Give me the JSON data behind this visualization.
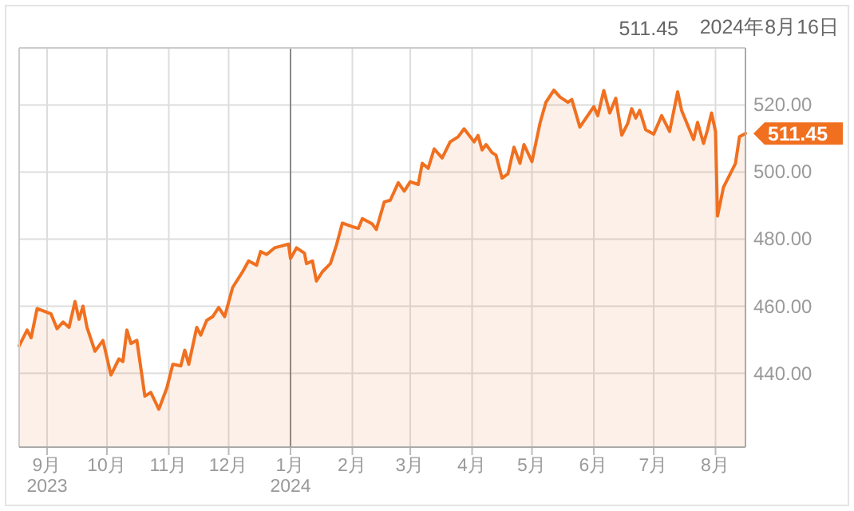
{
  "chart_data": {
    "type": "area",
    "x": [
      "2023-08-18",
      "2023-08-22",
      "2023-08-24",
      "2023-08-27",
      "2023-09-03",
      "2023-09-06",
      "2023-09-09",
      "2023-09-12",
      "2023-09-15",
      "2023-09-17",
      "2023-09-19",
      "2023-09-21",
      "2023-09-25",
      "2023-09-29",
      "2023-10-03",
      "2023-10-07",
      "2023-10-09",
      "2023-10-11",
      "2023-10-13",
      "2023-10-16",
      "2023-10-20",
      "2023-10-23",
      "2023-10-27",
      "2023-10-31",
      "2023-11-03",
      "2023-11-07",
      "2023-11-09",
      "2023-11-11",
      "2023-11-15",
      "2023-11-17",
      "2023-11-20",
      "2023-11-23",
      "2023-11-26",
      "2023-11-29",
      "2023-12-03",
      "2023-12-08",
      "2023-12-11",
      "2023-12-15",
      "2023-12-17",
      "2023-12-20",
      "2023-12-24",
      "2023-12-27",
      "2023-12-31",
      "2024-01-01",
      "2024-01-04",
      "2024-01-08",
      "2024-01-09",
      "2024-01-12",
      "2024-01-14",
      "2024-01-17",
      "2024-01-21",
      "2024-01-24",
      "2024-01-27",
      "2024-02-01",
      "2024-02-04",
      "2024-02-06",
      "2024-02-11",
      "2024-02-13",
      "2024-02-17",
      "2024-02-20",
      "2024-02-24",
      "2024-02-27",
      "2024-03-01",
      "2024-03-05",
      "2024-03-07",
      "2024-03-10",
      "2024-03-13",
      "2024-03-17",
      "2024-03-21",
      "2024-03-25",
      "2024-03-28",
      "2024-04-02",
      "2024-04-04",
      "2024-04-06",
      "2024-04-08",
      "2024-04-11",
      "2024-04-13",
      "2024-04-16",
      "2024-04-19",
      "2024-04-22",
      "2024-04-25",
      "2024-04-27",
      "2024-05-01",
      "2024-05-05",
      "2024-05-08",
      "2024-05-12",
      "2024-05-15",
      "2024-05-19",
      "2024-05-21",
      "2024-05-25",
      "2024-06-01",
      "2024-06-03",
      "2024-06-06",
      "2024-06-09",
      "2024-06-12",
      "2024-06-15",
      "2024-06-18",
      "2024-06-20",
      "2024-06-22",
      "2024-06-24",
      "2024-06-27",
      "2024-07-01",
      "2024-07-05",
      "2024-07-09",
      "2024-07-13",
      "2024-07-15",
      "2024-07-21",
      "2024-07-23",
      "2024-07-26",
      "2024-07-28",
      "2024-07-30",
      "2024-08-01",
      "2024-08-02",
      "2024-08-05",
      "2024-08-08",
      "2024-08-11",
      "2024-08-13",
      "2024-08-16"
    ],
    "series": [
      {
        "color": "#f07020",
        "values": [
          448.2,
          452.9,
          450.6,
          459.3,
          457.7,
          453.3,
          455.3,
          453.7,
          461.4,
          456.1,
          460.0,
          453.7,
          446.6,
          449.8,
          439.5,
          444.3,
          443.5,
          452.9,
          448.9,
          449.8,
          433.2,
          434.3,
          429.3,
          435.6,
          442.7,
          442.2,
          446.9,
          442.7,
          453.7,
          451.4,
          455.8,
          456.9,
          459.6,
          456.9,
          465.6,
          470.3,
          473.5,
          472.2,
          476.3,
          475.4,
          477.4,
          477.9,
          478.5,
          474.2,
          477.4,
          475.8,
          472.7,
          473.5,
          467.5,
          470.3,
          472.7,
          478.2,
          484.8,
          483.7,
          483.2,
          486.1,
          484.5,
          482.9,
          491.1,
          491.6,
          496.8,
          494.3,
          497.1,
          496.3,
          502.6,
          501.1,
          506.9,
          504.2,
          509.0,
          510.5,
          512.9,
          509.0,
          510.9,
          506.6,
          508.2,
          505.8,
          505.0,
          498.2,
          499.5,
          507.4,
          502.6,
          508.2,
          503.1,
          514.5,
          520.8,
          524.4,
          522.4,
          520.8,
          521.6,
          513.4,
          519.5,
          516.8,
          524.3,
          517.6,
          522.0,
          511.0,
          514.5,
          518.9,
          516.1,
          518.4,
          512.6,
          511.3,
          516.8,
          512.1,
          523.9,
          518.4,
          509.7,
          514.8,
          508.5,
          512.6,
          517.6,
          512.1,
          486.9,
          495.5,
          499.0,
          502.6,
          510.5,
          511.5
        ]
      }
    ],
    "xlim": [
      "2023-08-18",
      "2024-08-16"
    ],
    "xticks": [
      {
        "value": "2023-09-01",
        "label": "9月\n2023"
      },
      {
        "value": "2023-10-01",
        "label": "10月"
      },
      {
        "value": "2023-11-01",
        "label": "11月"
      },
      {
        "value": "2023-12-01",
        "label": "12月"
      },
      {
        "value": "2024-01-01",
        "label": "1月\n2024"
      },
      {
        "value": "2024-02-01",
        "label": "2月"
      },
      {
        "value": "2024-03-01",
        "label": "3月"
      },
      {
        "value": "2024-04-01",
        "label": "4月"
      },
      {
        "value": "2024-05-01",
        "label": "5月"
      },
      {
        "value": "2024-06-01",
        "label": "6月"
      },
      {
        "value": "2024-07-01",
        "label": "7月"
      },
      {
        "value": "2024-08-01",
        "label": "8月"
      }
    ],
    "ylim": [
      418,
      537
    ],
    "yticks": [
      {
        "value": 440,
        "label": "440.00"
      },
      {
        "value": 460,
        "label": "460.00"
      },
      {
        "value": 480,
        "label": "480.00"
      },
      {
        "value": 500,
        "label": "500.00"
      },
      {
        "value": 520,
        "label": "520.00"
      }
    ],
    "grid": true,
    "ref_lines": [
      {
        "axis": "x",
        "value": "2024-01-01",
        "color": "#8a8a8a"
      }
    ],
    "annotations": [
      "511.45",
      "2024年8月16日",
      {
        "text": "511.45",
        "x": "2024-08-16",
        "y": 511.45
      }
    ]
  }
}
